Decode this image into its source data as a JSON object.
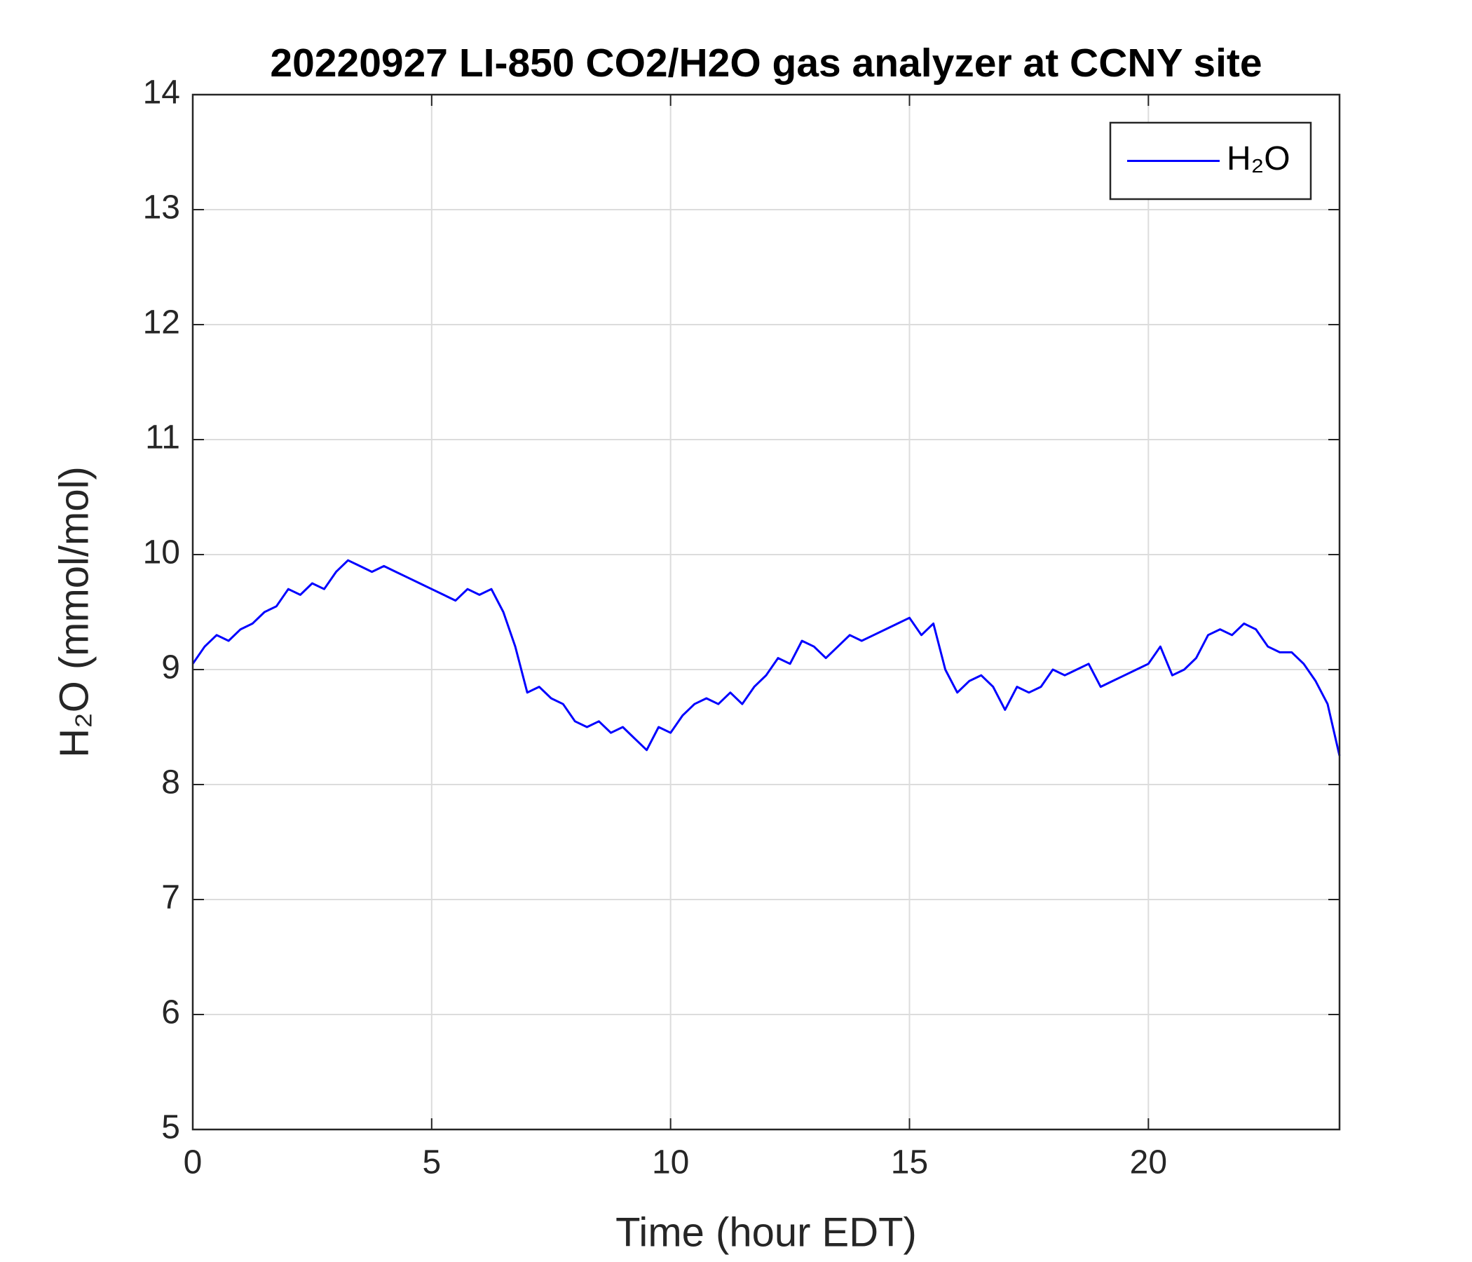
{
  "chart_data": {
    "type": "line",
    "title": "20220927 LI-850 CO2/H2O gas analyzer at CCNY site",
    "xlabel": "Time (hour EDT)",
    "ylabel": "H₂O (mmol/mol)",
    "x": [
      0,
      0.25,
      0.5,
      0.75,
      1,
      1.25,
      1.5,
      1.75,
      2,
      2.25,
      2.5,
      2.75,
      3,
      3.25,
      3.5,
      3.75,
      4,
      4.25,
      4.5,
      4.75,
      5,
      5.25,
      5.5,
      5.75,
      6,
      6.25,
      6.5,
      6.75,
      7,
      7.25,
      7.5,
      7.75,
      8,
      8.25,
      8.5,
      8.75,
      9,
      9.25,
      9.5,
      9.75,
      10,
      10.25,
      10.5,
      10.75,
      11,
      11.25,
      11.5,
      11.75,
      12,
      12.25,
      12.5,
      12.75,
      13,
      13.25,
      13.5,
      13.75,
      14,
      14.25,
      14.5,
      14.75,
      15,
      15.25,
      15.5,
      15.75,
      16,
      16.25,
      16.5,
      16.75,
      17,
      17.25,
      17.5,
      17.75,
      18,
      18.25,
      18.5,
      18.75,
      19,
      19.25,
      19.5,
      19.75,
      20,
      20.25,
      20.5,
      20.75,
      21,
      21.25,
      21.5,
      21.75,
      22,
      22.25,
      22.5,
      22.75,
      23,
      23.25,
      23.5,
      23.75,
      24
    ],
    "series": [
      {
        "name": "H₂O",
        "color": "#0000ff",
        "values": [
          9.05,
          9.2,
          9.3,
          9.25,
          9.35,
          9.4,
          9.5,
          9.55,
          9.7,
          9.65,
          9.75,
          9.7,
          9.85,
          9.95,
          9.9,
          9.85,
          9.9,
          9.85,
          9.8,
          9.75,
          9.7,
          9.65,
          9.6,
          9.7,
          9.65,
          9.7,
          9.5,
          9.2,
          8.8,
          8.85,
          8.75,
          8.7,
          8.55,
          8.5,
          8.55,
          8.45,
          8.5,
          8.4,
          8.3,
          8.5,
          8.45,
          8.6,
          8.7,
          8.75,
          8.7,
          8.8,
          8.7,
          8.85,
          8.95,
          9.1,
          9.05,
          9.25,
          9.2,
          9.1,
          9.2,
          9.3,
          9.25,
          9.3,
          9.35,
          9.4,
          9.45,
          9.3,
          9.4,
          9.0,
          8.8,
          8.9,
          8.95,
          8.85,
          8.65,
          8.85,
          8.8,
          8.85,
          9.0,
          8.95,
          9.0,
          9.05,
          8.85,
          8.9,
          8.95,
          9.0,
          9.05,
          9.2,
          8.95,
          9.0,
          9.1,
          9.3,
          9.35,
          9.3,
          9.4,
          9.35,
          9.2,
          9.15,
          9.15,
          9.05,
          8.9,
          8.7,
          8.25
        ]
      }
    ],
    "xlim": [
      0,
      24
    ],
    "xticks": [
      0,
      5,
      10,
      15,
      20
    ],
    "ylim": [
      5,
      14
    ],
    "yticks": [
      5,
      6,
      7,
      8,
      9,
      10,
      11,
      12,
      13,
      14
    ],
    "grid": true,
    "legend": "northeast"
  }
}
